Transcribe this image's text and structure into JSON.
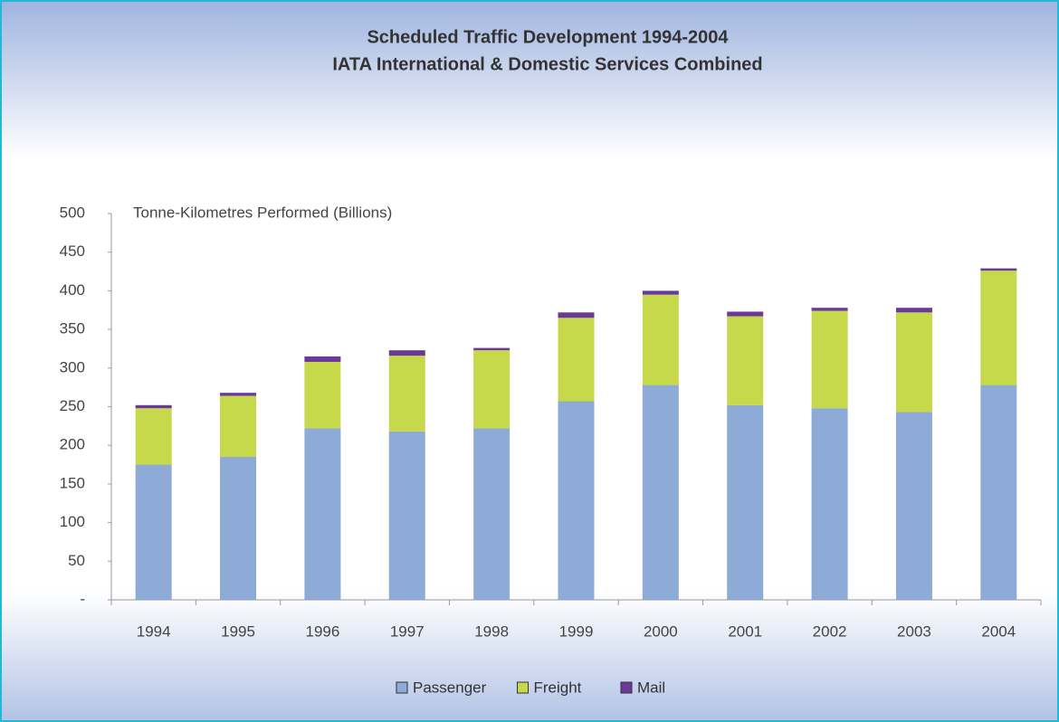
{
  "chart_data": {
    "type": "stacked_bar",
    "title": "Scheduled Traffic Development 1994-2004",
    "subtitle": "IATA International & Domestic Services Combined",
    "y_label": "Tonne-Kilometres Performed (Billions)",
    "categories": [
      "1994",
      "1995",
      "1996",
      "1997",
      "1998",
      "1999",
      "2000",
      "2001",
      "2002",
      "2003",
      "2004"
    ],
    "series": [
      {
        "name": "Passenger",
        "color": "#8eaad6",
        "values": [
          175,
          185,
          222,
          218,
          222,
          257,
          278,
          252,
          248,
          243,
          278
        ]
      },
      {
        "name": "Freight",
        "color": "#c6d94a",
        "values": [
          73,
          79,
          86,
          98,
          101,
          108,
          117,
          115,
          126,
          129,
          148
        ]
      },
      {
        "name": "Mail",
        "color": "#6b3a96",
        "values": [
          4,
          4,
          7,
          7,
          3,
          7,
          5,
          6,
          4,
          6,
          3
        ]
      }
    ],
    "ylim": [
      0,
      500
    ],
    "yticks": [
      {
        "value": 0,
        "label": "-"
      },
      50,
      100,
      150,
      200,
      250,
      300,
      350,
      400,
      450,
      500
    ],
    "legend": "bottom"
  }
}
